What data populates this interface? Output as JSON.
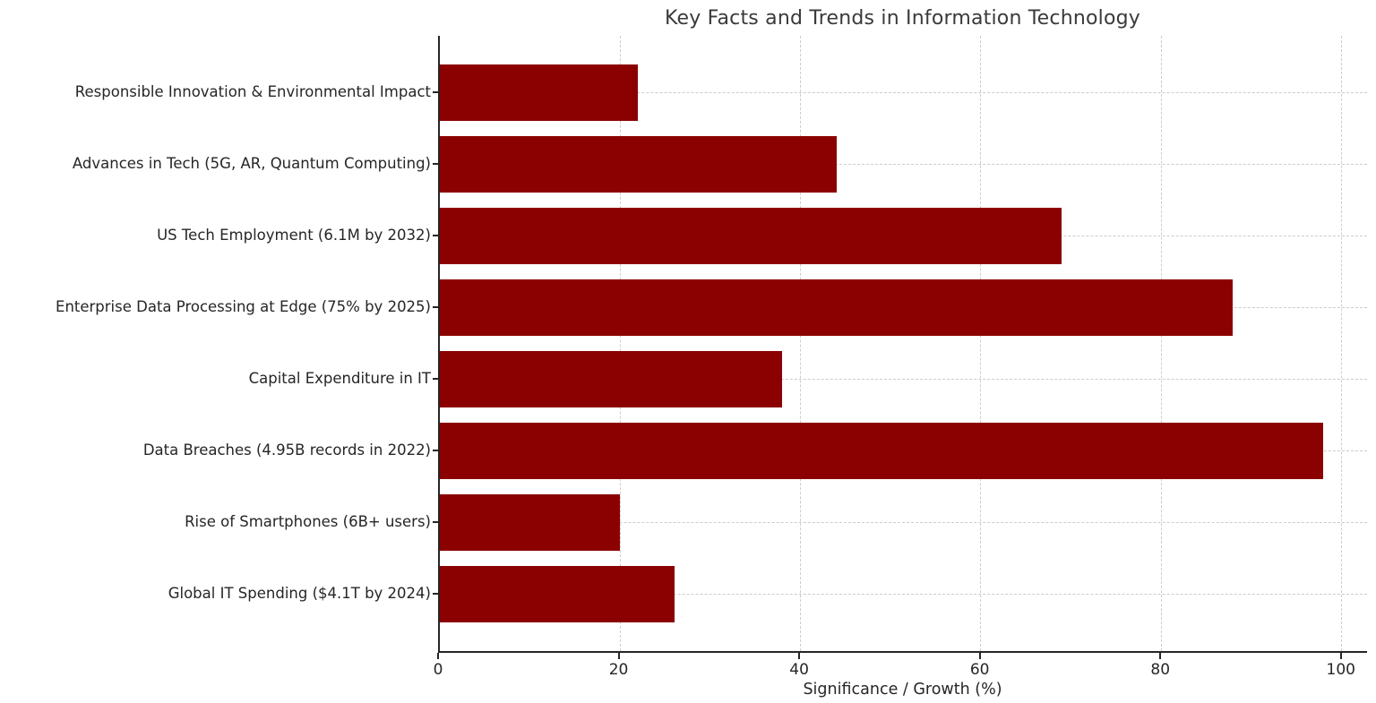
{
  "chart_data": {
    "type": "bar",
    "orientation": "horizontal",
    "title": "Key Facts and Trends in Information Technology",
    "xlabel": "Significance / Growth (%)",
    "ylabel": "",
    "categories": [
      "Responsible Innovation & Environmental Impact",
      "Advances in Tech (5G, AR, Quantum Computing)",
      "US Tech Employment (6.1M by 2032)",
      "Enterprise Data Processing at Edge (75% by 2025)",
      "Capital Expenditure in IT",
      "Data Breaches (4.95B records in 2022)",
      "Rise of Smartphones (6B+ users)",
      "Global IT Spending ($4.1T by 2024)"
    ],
    "categories_order": "top-to-bottom",
    "values": [
      22,
      44,
      69,
      88,
      38,
      98,
      20,
      26
    ],
    "xticks": [
      0,
      20,
      40,
      60,
      80,
      100
    ],
    "xlim": [
      0,
      102.9
    ],
    "grid": {
      "style": "dashed",
      "color": "#cccccc",
      "axis": "both"
    },
    "legend": "none",
    "bar_color": "#8B0000"
  },
  "colors": {
    "bar": "#8B0000",
    "axis_text": "#262626",
    "title_text": "#3a3a3a",
    "grid": "#cccccc",
    "background": "#ffffff"
  }
}
